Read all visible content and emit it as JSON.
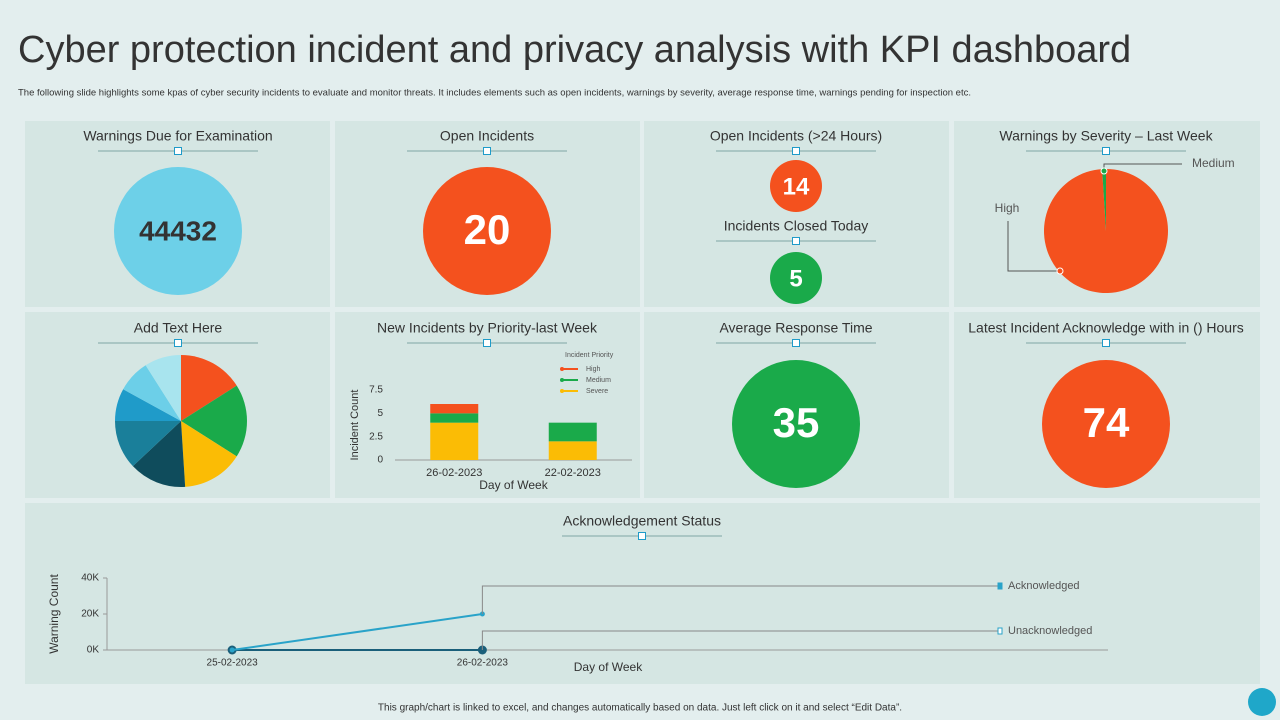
{
  "title": "Cyber protection incident and privacy analysis with KPI dashboard",
  "subtitle": "The following slide highlights some kpas of cyber security incidents to evaluate and monitor threats. It includes elements such as open incidents, warnings by severity, average response time, warnings pending for inspection etc.",
  "footer": "This graph/chart is linked to excel, and changes automatically based on data. Just left click on it and select “Edit Data”.",
  "kpis": [
    {
      "title": "Warnings Due for Examination",
      "value": 44432,
      "color": "#6dd0e8"
    },
    {
      "title": "Open Incidents",
      "value": 20,
      "color": "#f4511e"
    },
    {
      "title": "Open Incidents (>24 Hours)",
      "value": 14,
      "color": "#f4511e"
    },
    {
      "title": "Incidents Closed Today",
      "value": 5,
      "color": "#1aaa4a"
    },
    {
      "title": "Average Response Time",
      "value": 35,
      "color": "#1aaa4a"
    },
    {
      "title": "Latest Incident Acknowledge with in () Hours",
      "value": 74,
      "color": "#f4511e"
    }
  ],
  "chart_data": [
    {
      "type": "pie",
      "title": "Warnings by Severity – Last Week",
      "categories": [
        "High",
        "Medium"
      ],
      "values": [
        99,
        1
      ],
      "colors": [
        "#f4511e",
        "#1aaa4a"
      ]
    },
    {
      "type": "pie",
      "title": "Add Text Here",
      "categories": [
        null,
        null,
        null,
        null,
        null,
        null,
        null,
        null
      ],
      "values": [
        16,
        18,
        15,
        14,
        12,
        8,
        8,
        9
      ],
      "colors": [
        "#f4511e",
        "#1aaa4a",
        "#fbbc05",
        "#0f4c5c",
        "#1a7f9a",
        "#1f9bc9",
        "#6ccfe8",
        "#a8e4ee"
      ]
    },
    {
      "type": "bar",
      "stacked": true,
      "title": "New Incidents by Priority-last Week",
      "x_label": "Day of Week",
      "y_label": "Incident Count",
      "legend_title": "Incident Priority",
      "categories": [
        "26-02-2023",
        "22-02-2023"
      ],
      "series": [
        {
          "name": "Severe",
          "color": "#fbbc05",
          "values": [
            4,
            2
          ]
        },
        {
          "name": "Medium",
          "color": "#1aaa4a",
          "values": [
            1,
            2
          ]
        },
        {
          "name": "High",
          "color": "#f4511e",
          "values": [
            1,
            0
          ]
        }
      ],
      "ylim": [
        0,
        7.5
      ],
      "yticks": [
        0,
        2.5,
        5,
        7.5
      ]
    },
    {
      "type": "line",
      "title": "Acknowledgement Status",
      "x_label": "Day of Week",
      "y_label": "Warning Count",
      "categories": [
        "25-02-2023",
        "26-02-2023"
      ],
      "series": [
        {
          "name": "Acknowledged",
          "color": "#29a3c9",
          "values": [
            0,
            20000
          ]
        },
        {
          "name": "Unacknowledged",
          "color": "#1a5f7a",
          "values": [
            0,
            0
          ]
        }
      ],
      "ylim": [
        0,
        40000
      ],
      "yticks": [
        {
          "value": 0,
          "label": "0K"
        },
        {
          "value": 20000,
          "label": "20K"
        },
        {
          "value": 40000,
          "label": "40K"
        }
      ]
    }
  ]
}
